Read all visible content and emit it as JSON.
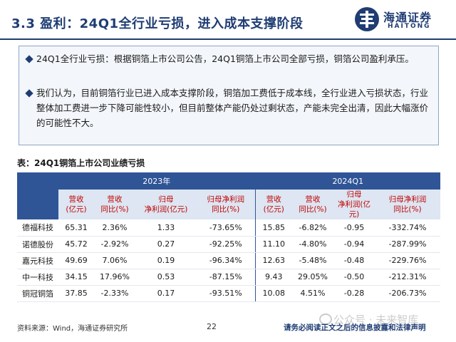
{
  "header": {
    "title": "3.3 盈利：24Q1全行业亏损，进入成本支撑阶段",
    "logo_cn": "海通证券",
    "logo_en": "HAITONG",
    "brand_color": "#1f3d73"
  },
  "summary": {
    "bullets": [
      "24Q1全行业亏损：根据铜箔上市公司公告，24Q1铜箔上市公司全部亏损，铜箔公司盈利承压。",
      "我们认为，目前铜箔行业已进入成本支撑阶段，铜箔加工费低于成本线，全行业进入亏损状态，行业整体加工费进一步下降可能性较小，但目前整体产能仍处过剩状态，产能未完全出清，因此大幅涨价的可能性不大。"
    ]
  },
  "table": {
    "caption": "表：24Q1铜箔上市公司业绩亏损",
    "year_groups": [
      "2023年",
      "2024Q1"
    ],
    "columns": [
      "营收\n(亿元)",
      "营收\n同比(%)",
      "归母\n净利润(亿元)",
      "归母净利润\n同比(%)",
      "营收\n(亿元)",
      "营收\n同比(%)",
      "归母\n净利润(亿元)",
      "归母净利润\n同比(%)"
    ],
    "rows": [
      {
        "name": "德福科技",
        "cells": [
          "65.31",
          "2.36%",
          "1.33",
          "-73.65%",
          "15.85",
          "-6.82%",
          "-0.95",
          "-332.74%"
        ]
      },
      {
        "name": "诺德股份",
        "cells": [
          "45.72",
          "-2.92%",
          "0.27",
          "-92.25%",
          "11.10",
          "-4.80%",
          "-0.94",
          "-287.99%"
        ]
      },
      {
        "name": "嘉元科技",
        "cells": [
          "49.69",
          "7.06%",
          "0.19",
          "-96.34%",
          "12.63",
          "-5.48%",
          "-0.48",
          "-229.76%"
        ]
      },
      {
        "name": "中一科技",
        "cells": [
          "34.15",
          "17.96%",
          "0.53",
          "-87.15%",
          "9.43",
          "29.05%",
          "-0.50",
          "-212.31%"
        ]
      },
      {
        "name": "铜冠铜箔",
        "cells": [
          "37.85",
          "-2.33%",
          "0.17",
          "-93.51%",
          "10.08",
          "4.51%",
          "-0.28",
          "-206.73%"
        ]
      }
    ]
  },
  "footer": {
    "source": "资料来源：Wind，海通证券研究所",
    "page": "22",
    "disclaimer": "请务必阅读正文之后的信息披露和法律声明",
    "watermark": "公众号 · 未来智库"
  }
}
